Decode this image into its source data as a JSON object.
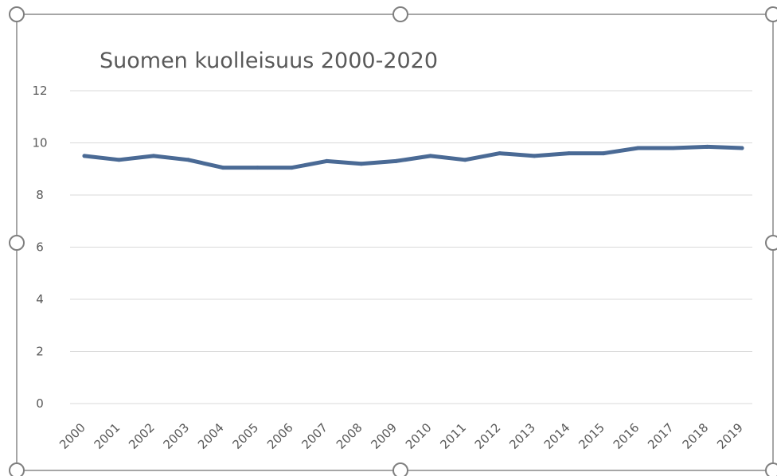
{
  "chart_data": {
    "type": "line",
    "title": "Suomen kuolleisuus 2000-2020",
    "xlabel": "",
    "ylabel": "",
    "categories": [
      "2000",
      "2001",
      "2002",
      "2003",
      "2004",
      "2005",
      "2006",
      "2007",
      "2008",
      "2009",
      "2010",
      "2011",
      "2012",
      "2013",
      "2014",
      "2015",
      "2016",
      "2017",
      "2018",
      "2019"
    ],
    "series": [
      {
        "values": [
          9.5,
          9.35,
          9.5,
          9.35,
          9.05,
          9.05,
          9.05,
          9.3,
          9.2,
          9.3,
          9.5,
          9.35,
          9.6,
          9.5,
          9.6,
          9.6,
          9.8,
          9.8,
          9.85,
          9.8
        ],
        "color": "#4a6a95"
      }
    ],
    "ylim": [
      0,
      12
    ],
    "yticks": [
      "0",
      "2",
      "4",
      "6",
      "8",
      "10",
      "12"
    ],
    "grid": true,
    "legend": "none"
  },
  "colors": {
    "gridline": "#d9d9d9",
    "frame": "#a6a6a6",
    "handle": "#7f7f7f",
    "text": "#595959"
  }
}
